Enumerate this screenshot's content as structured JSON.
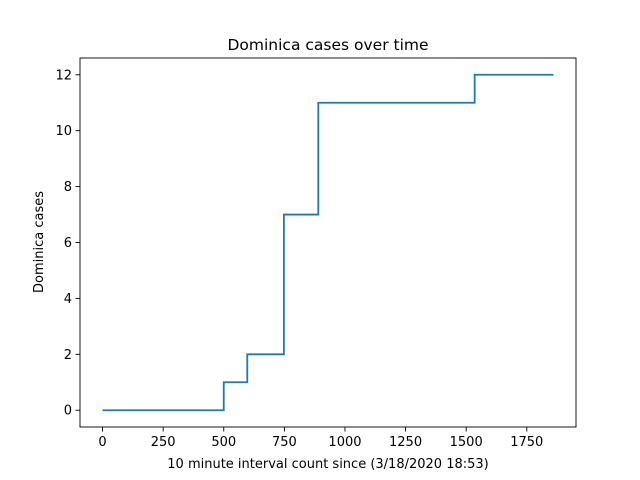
{
  "chart_data": {
    "type": "line",
    "drawstyle": "steps-post",
    "title": "Dominica cases over time",
    "xlabel": "10 minute interval count since (3/18/2020 18:53)",
    "ylabel": "Dominica cases",
    "xlim": [
      -93,
      1953
    ],
    "ylim": [
      -0.6,
      12.6
    ],
    "xticks": [
      0,
      250,
      500,
      750,
      1000,
      1250,
      1500,
      1750
    ],
    "xtick_labels": [
      "0",
      "250",
      "500",
      "750",
      "1000",
      "1250",
      "1500",
      "1750"
    ],
    "yticks": [
      0,
      2,
      4,
      6,
      8,
      10,
      12
    ],
    "ytick_labels": [
      "0",
      "2",
      "4",
      "6",
      "8",
      "10",
      "12"
    ],
    "grid": false,
    "legend": "none",
    "series": [
      {
        "color": "#1f77b4",
        "x": [
          0,
          500,
          597,
          748,
          890,
          1535,
          1860
        ],
        "y": [
          0,
          1,
          2,
          7,
          11,
          12,
          12
        ]
      }
    ]
  }
}
